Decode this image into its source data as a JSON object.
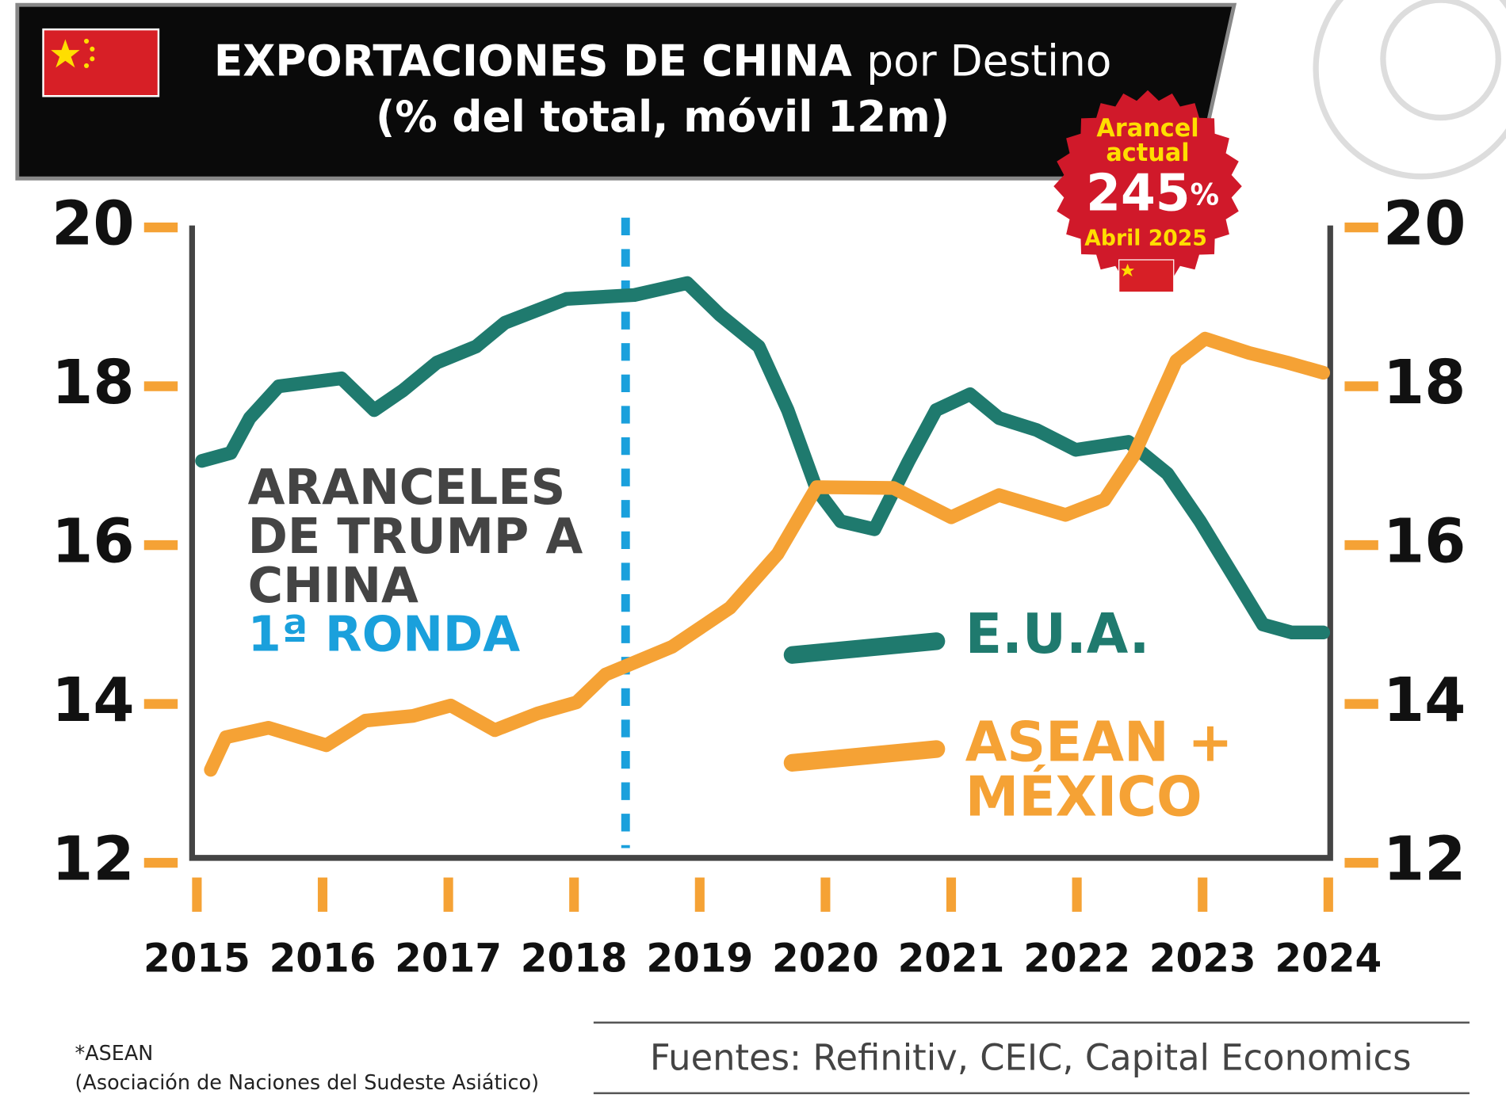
{
  "chart_data": {
    "type": "line",
    "title": "EXPORTACIONES DE CHINA",
    "title_suffix": "por Destino",
    "subtitle": "(% del total, móvil 12m)",
    "badge": {
      "line1": "Arancel actual",
      "value": "245",
      "unit": "%",
      "date": "Abril 2025"
    },
    "annotation": {
      "text": "ARANCELES DE TRUMP A CHINA",
      "highlight": "1ª RONDA",
      "x": 2018.41
    },
    "xlim": [
      2015,
      2024
    ],
    "xticks": [
      2015,
      2016,
      2017,
      2018,
      2019,
      2020,
      2021,
      2022,
      2023,
      2024
    ],
    "ylim": [
      12,
      20
    ],
    "yticks": [
      12,
      14,
      16,
      18,
      20
    ],
    "y2lim": [
      12,
      20
    ],
    "y2ticks": [
      12,
      14,
      16,
      18,
      20
    ],
    "series": [
      {
        "name": "E.U.A.",
        "color": "#1f7a6e",
        "x": [
          2015.04,
          2015.27,
          2015.42,
          2015.65,
          2016.15,
          2016.41,
          2016.64,
          2016.91,
          2017.22,
          2017.45,
          2017.94,
          2018.48,
          2018.9,
          2019.16,
          2019.47,
          2019.7,
          2019.93,
          2020.12,
          2020.39,
          2020.66,
          2020.88,
          2021.15,
          2021.38,
          2021.68,
          2021.99,
          2022.41,
          2022.72,
          2022.98,
          2023.25,
          2023.48,
          2023.71,
          2023.96
        ],
        "values": [
          17.06,
          17.16,
          17.6,
          18.0,
          18.1,
          17.7,
          17.95,
          18.3,
          18.5,
          18.8,
          19.1,
          19.15,
          19.3,
          18.9,
          18.5,
          17.7,
          16.7,
          16.3,
          16.2,
          17.05,
          17.7,
          17.9,
          17.6,
          17.45,
          17.2,
          17.3,
          16.9,
          16.3,
          15.6,
          15.0,
          14.9,
          14.9
        ]
      },
      {
        "name": "ASEAN + MÉXICO",
        "color": "#f5a235",
        "x": [
          2015.11,
          2015.23,
          2015.57,
          2016.03,
          2016.34,
          2016.72,
          2017.02,
          2017.37,
          2017.71,
          2018.02,
          2018.25,
          2018.78,
          2019.24,
          2019.62,
          2019.93,
          2020.54,
          2021.0,
          2021.38,
          2021.91,
          2022.22,
          2022.45,
          2022.79,
          2023.02,
          2023.37,
          2023.67,
          2023.96
        ],
        "values": [
          13.17,
          13.58,
          13.7,
          13.48,
          13.79,
          13.85,
          13.98,
          13.67,
          13.88,
          14.02,
          14.37,
          14.72,
          15.21,
          15.89,
          16.73,
          16.72,
          16.35,
          16.63,
          16.38,
          16.57,
          17.12,
          18.32,
          18.6,
          18.42,
          18.3,
          18.17
        ]
      }
    ],
    "footnote": {
      "line1": "*ASEAN",
      "line2": "(Asociación de Naciones del Sudeste Asiático)"
    },
    "source": "Fuentes: Refinitiv, CEIC, Capital Economics"
  }
}
